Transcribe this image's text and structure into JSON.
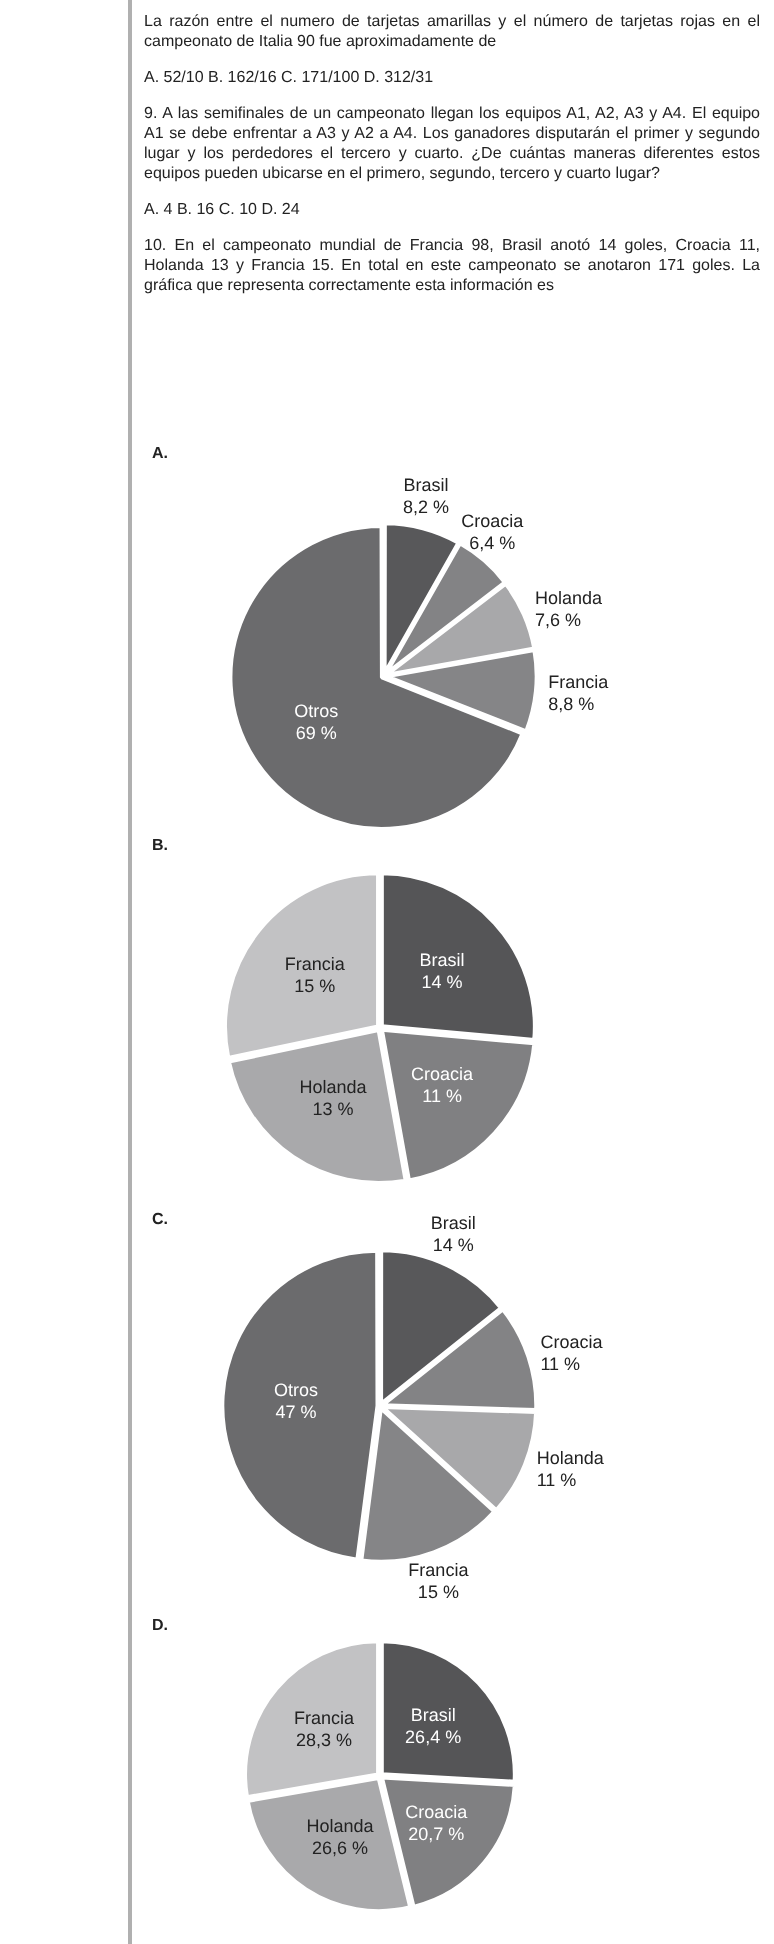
{
  "chart_data": [
    {
      "type": "pie",
      "title": "A.",
      "annotations": [
        "La razón entre el numero de tarjetas amarillas y el número de tarjetas rojas en el campeonato de Italia 90 fue aproximadamente de",
        "A. 52/10     B. 162/16     C. 171/100     D. 312/31",
        "9. A las semifinales de un campeonato llegan los equipos A1, A2, A3 y A4. El equipo A1 se debe enfrentar a A3 y A2 a A4. Los ganadores disputarán el primer y segundo lugar y los perdedores el tercero y cuarto. ¿De cuántas maneras diferentes estos equipos pueden ubicarse en el primero, segundo, tercero y cuarto lugar?",
        "A. 4     B. 16     C. 10     D. 24",
        "10. En el campeonato mundial de Francia 98, Brasil anotó 14 goles, Croacia 11, Holanda 13 y Francia 15. En total en este campeonato se anotaron 171 goles. La gráfica que representa correctamente esta información es"
      ],
      "categories": [
        "Brasil",
        "Croacia",
        "Holanda",
        "Francia",
        "Otros"
      ],
      "values": [
        8.2,
        6.4,
        7.6,
        8.8,
        69
      ],
      "value_labels": [
        "8,2 %",
        "6,4 %",
        "7,6 %",
        "8,8 %",
        "69 %"
      ],
      "colors": [
        "#58585a",
        "#838385",
        "#a8a8aa",
        "#858587",
        "#6b6b6d"
      ]
    },
    {
      "type": "pie",
      "title": "B.",
      "categories": [
        "Brasil",
        "Croacia",
        "Holanda",
        "Francia"
      ],
      "values": [
        14,
        11,
        13,
        15
      ],
      "value_labels": [
        "14 %",
        "11 %",
        "13 %",
        "15 %"
      ],
      "colors": [
        "#555557",
        "#808082",
        "#a9a9ab",
        "#c2c2c4"
      ]
    },
    {
      "type": "pie",
      "title": "C.",
      "categories": [
        "Brasil",
        "Croacia",
        "Holanda",
        "Francia",
        "Otros"
      ],
      "values": [
        14,
        11,
        11,
        15,
        47
      ],
      "value_labels": [
        "14 %",
        "11 %",
        "11 %",
        "15 %",
        "47 %"
      ],
      "colors": [
        "#58585a",
        "#838385",
        "#a8a8aa",
        "#858587",
        "#6b6b6d"
      ]
    },
    {
      "type": "pie",
      "title": "D.",
      "categories": [
        "Brasil",
        "Croacia",
        "Holanda",
        "Francia"
      ],
      "values": [
        26.4,
        20.7,
        26.6,
        28.3
      ],
      "value_labels": [
        "26,4 %",
        "20,7 %",
        "26,6 %",
        "28,3 %"
      ],
      "colors": [
        "#555557",
        "#808082",
        "#a9a9ab",
        "#c2c2c4"
      ]
    }
  ]
}
